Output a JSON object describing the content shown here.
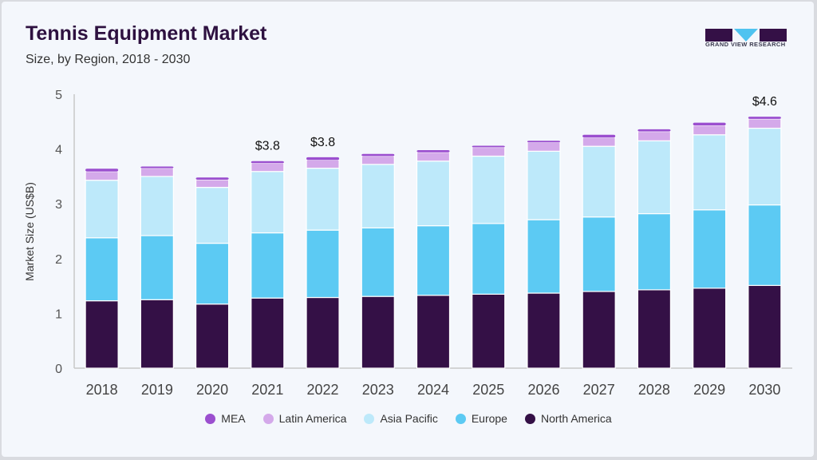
{
  "header": {
    "title": "Tennis Equipment Market",
    "subtitle": "Size, by Region, 2018 - 2030",
    "logo_text": "GRAND VIEW RESEARCH"
  },
  "chart_data": {
    "type": "bar",
    "stacked": true,
    "title": "Tennis Equipment Market",
    "subtitle": "Size, by Region, 2018 - 2030",
    "xlabel": "",
    "ylabel": "Market Size (US$B)",
    "ylim": [
      0,
      5
    ],
    "yticks": [
      "0",
      "1",
      "2",
      "3",
      "4",
      "5"
    ],
    "categories": [
      "2018",
      "2019",
      "2020",
      "2021",
      "2022",
      "2023",
      "2024",
      "2025",
      "2026",
      "2027",
      "2028",
      "2029",
      "2030"
    ],
    "series": [
      {
        "name": "North America",
        "color": "#341046",
        "values": [
          1.23,
          1.25,
          1.17,
          1.28,
          1.29,
          1.31,
          1.33,
          1.35,
          1.37,
          1.4,
          1.43,
          1.46,
          1.51
        ]
      },
      {
        "name": "Europe",
        "color": "#5ccaf3",
        "values": [
          1.15,
          1.17,
          1.11,
          1.19,
          1.23,
          1.25,
          1.27,
          1.29,
          1.34,
          1.36,
          1.39,
          1.43,
          1.47
        ]
      },
      {
        "name": "Asia Pacific",
        "color": "#bde9fa",
        "values": [
          1.05,
          1.08,
          1.02,
          1.12,
          1.13,
          1.16,
          1.18,
          1.23,
          1.25,
          1.29,
          1.33,
          1.37,
          1.4
        ]
      },
      {
        "name": "Latin America",
        "color": "#d4a9ea",
        "values": [
          0.16,
          0.15,
          0.14,
          0.15,
          0.15,
          0.15,
          0.16,
          0.16,
          0.16,
          0.16,
          0.17,
          0.17,
          0.17
        ]
      },
      {
        "name": "MEA",
        "color": "#9b4fcf",
        "values": [
          0.05,
          0.03,
          0.04,
          0.04,
          0.05,
          0.04,
          0.04,
          0.03,
          0.03,
          0.05,
          0.04,
          0.05,
          0.04
        ]
      }
    ],
    "annotations": [
      {
        "category": "2021",
        "text": "$3.8"
      },
      {
        "category": "2022",
        "text": "$3.8"
      },
      {
        "category": "2030",
        "text": "$4.6"
      }
    ],
    "legend": {
      "position": "bottom",
      "order": [
        "MEA",
        "Latin America",
        "Asia Pacific",
        "Europe",
        "North America"
      ]
    },
    "grid": false
  }
}
